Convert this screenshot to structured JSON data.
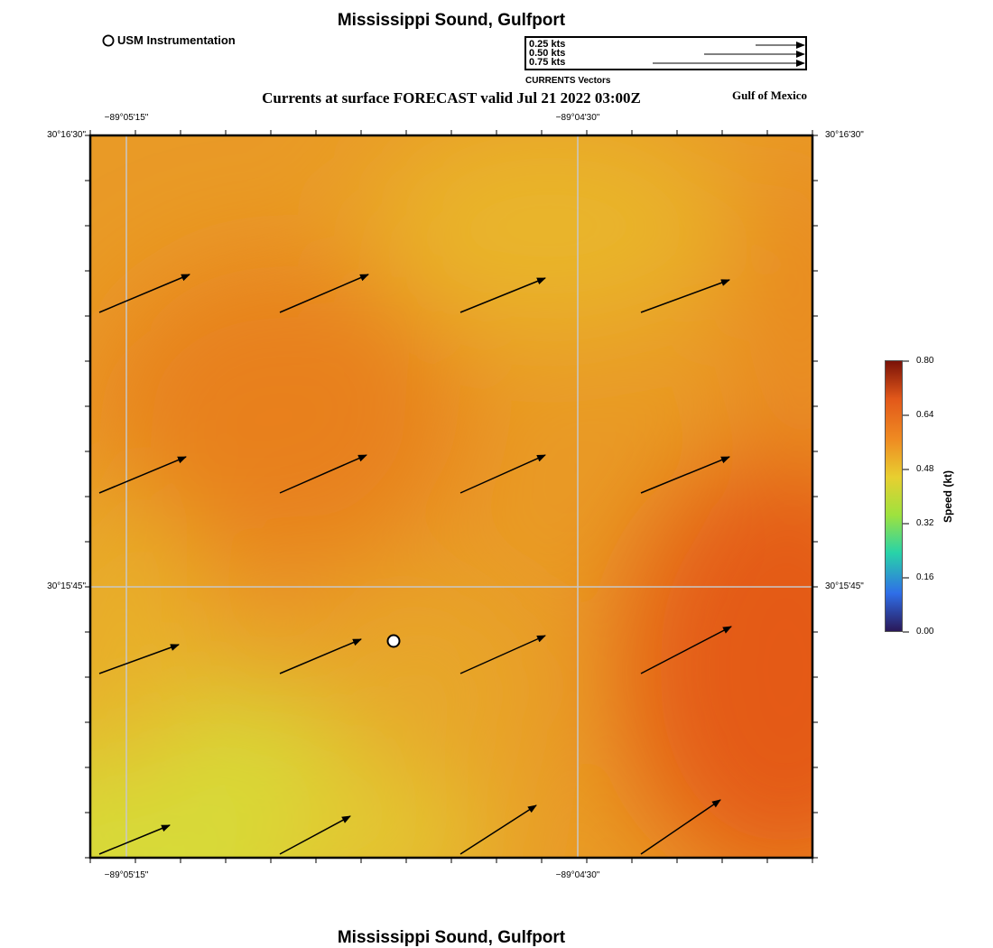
{
  "header": {
    "title": "Mississippi Sound, Gulfport",
    "subtitle": "Currents at surface FORECAST valid Jul 21 2022 03:00Z",
    "region": "Gulf of Mexico",
    "footer_title": "Mississippi Sound, Gulfport"
  },
  "legend": {
    "station_label": "USM Instrumentation",
    "vector_scale": [
      {
        "label": "0.25 kts",
        "speed_kts": 0.25
      },
      {
        "label": "0.50 kts",
        "speed_kts": 0.5
      },
      {
        "label": "0.75 kts",
        "speed_kts": 0.75
      }
    ],
    "vector_caption": "CURRENTS Vectors"
  },
  "axes": {
    "top_ticks": [
      "−89°05'15\"",
      "−89°04'30\""
    ],
    "bottom_ticks": [
      "−89°05'15\"",
      "−89°04'30\""
    ],
    "left_ticks": [
      "30°16'30\"",
      "30°15'45\""
    ],
    "right_ticks": [
      "30°16'30\"",
      "30°15'45\""
    ]
  },
  "colorbar": {
    "label": "Speed (kt)",
    "ticks": [
      "0.00",
      "0.16",
      "0.32",
      "0.48",
      "0.64",
      "0.80"
    ],
    "colors": [
      "#2a1858",
      "#2f6ee8",
      "#28d3a8",
      "#9ee23e",
      "#e8cf30",
      "#ef8b22",
      "#e2581a",
      "#7a1208"
    ]
  },
  "map": {
    "station_marker": "USM Instrumentation station",
    "vector_glyph": "arrow",
    "vectors": [
      {
        "row": 0,
        "col": 0,
        "u": 0.5,
        "v": 0.21
      },
      {
        "row": 0,
        "col": 1,
        "u": 0.49,
        "v": 0.21
      },
      {
        "row": 0,
        "col": 2,
        "u": 0.47,
        "v": 0.19
      },
      {
        "row": 0,
        "col": 3,
        "u": 0.49,
        "v": 0.18
      },
      {
        "row": 1,
        "col": 0,
        "u": 0.48,
        "v": 0.2
      },
      {
        "row": 1,
        "col": 1,
        "u": 0.48,
        "v": 0.21
      },
      {
        "row": 1,
        "col": 2,
        "u": 0.47,
        "v": 0.21
      },
      {
        "row": 1,
        "col": 3,
        "u": 0.49,
        "v": 0.2
      },
      {
        "row": 2,
        "col": 0,
        "u": 0.44,
        "v": 0.16
      },
      {
        "row": 2,
        "col": 1,
        "u": 0.45,
        "v": 0.19
      },
      {
        "row": 2,
        "col": 2,
        "u": 0.47,
        "v": 0.21
      },
      {
        "row": 2,
        "col": 3,
        "u": 0.5,
        "v": 0.26
      },
      {
        "row": 3,
        "col": 0,
        "u": 0.39,
        "v": 0.16
      },
      {
        "row": 3,
        "col": 1,
        "u": 0.39,
        "v": 0.21
      },
      {
        "row": 3,
        "col": 2,
        "u": 0.42,
        "v": 0.27
      },
      {
        "row": 3,
        "col": 3,
        "u": 0.44,
        "v": 0.3
      }
    ]
  }
}
